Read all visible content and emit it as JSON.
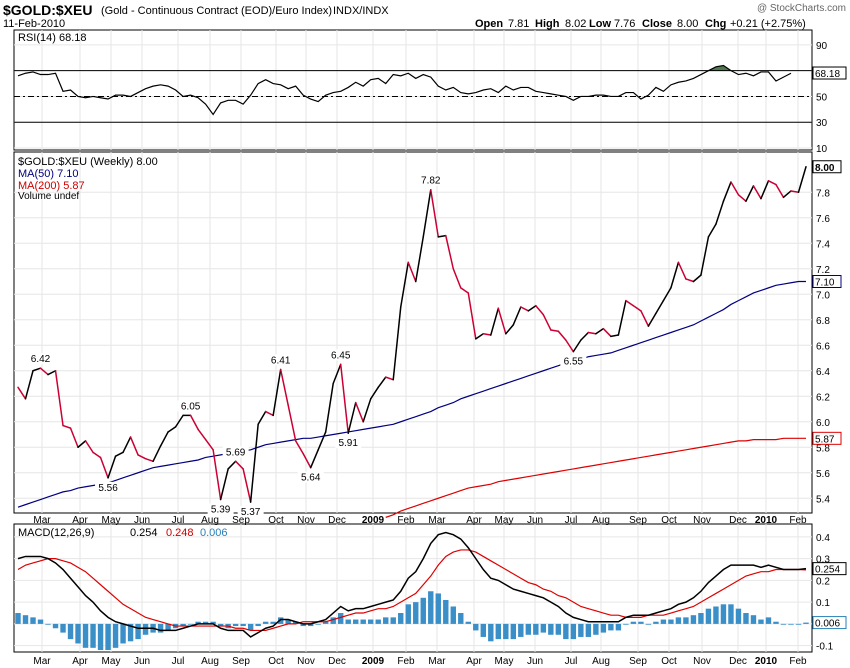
{
  "header": {
    "symbol": "$GOLD:$XEU",
    "description": "(Gold - Continuous Contract (EOD)/Euro Index)",
    "exchange": "INDX/INDX",
    "date": "11-Feb-2010",
    "open_label": "Open",
    "open": "7.81",
    "high_label": "High",
    "high": "8.02",
    "low_label": "Low",
    "low": "7.76",
    "close_label": "Close",
    "close": "8.00",
    "chg_label": "Chg",
    "chg": "+0.21 (+2.75%)",
    "watermark": "@ StockCharts.com"
  },
  "colors": {
    "up": "#000000",
    "down": "#cc0033",
    "ma50": "#000080",
    "ma200": "#dd0000",
    "hist": "#3a8fc8",
    "rsi_fill": "#4e7a4e",
    "grid": "#e6e6e6",
    "axis": "#000000"
  },
  "chart_data": [
    {
      "type": "line",
      "panel": "rsi",
      "legend": "RSI(14) 68.18",
      "last_value": "68.18",
      "ylim": [
        10,
        100
      ],
      "y_ticks": [
        "90",
        "70",
        "50",
        "30",
        "10"
      ],
      "reference_lines": [
        70,
        50,
        30
      ],
      "values": [
        66,
        68,
        69,
        67,
        67,
        68,
        54,
        55,
        50,
        49,
        50,
        49,
        48,
        51,
        51,
        50,
        53,
        56,
        58,
        59,
        58,
        55,
        50,
        51,
        49,
        44,
        36,
        45,
        47,
        47,
        44,
        51,
        60,
        63,
        60,
        59,
        56,
        58,
        51,
        48,
        46,
        51,
        53,
        54,
        57,
        61,
        58,
        63,
        64,
        60,
        67,
        66,
        68,
        64,
        67,
        65,
        58,
        55,
        57,
        53,
        52,
        53,
        55,
        56,
        53,
        58,
        55,
        57,
        57,
        54,
        53,
        52,
        51,
        50,
        47,
        50,
        50,
        51,
        51,
        50,
        50,
        53,
        53,
        48,
        51,
        57,
        54,
        59,
        61,
        62,
        64,
        67,
        70,
        73,
        74,
        70,
        67,
        68,
        66,
        69,
        69,
        62,
        65,
        68
      ]
    },
    {
      "type": "line",
      "panel": "price",
      "legend": [
        "$GOLD:$XEU (Weekly) 8.00",
        "MA(50) 7.10",
        "MA(200) 5.87",
        "Volume undef"
      ],
      "ylim": [
        5.3,
        8.1
      ],
      "y_ticks": [
        "8.00",
        "7.8",
        "7.6",
        "7.4",
        "7.2",
        "7.10",
        "7.0",
        "6.8",
        "6.6",
        "6.4",
        "6.2",
        "6.0",
        "5.87",
        "5.8",
        "5.6",
        "5.4"
      ],
      "x_ticks": [
        "Mar",
        "Apr",
        "May",
        "Jun",
        "Jul",
        "Aug",
        "Sep",
        "Oct",
        "Nov",
        "Dec",
        "2009",
        "Feb",
        "Mar",
        "Apr",
        "May",
        "Jun",
        "Jul",
        "Aug",
        "Sep",
        "Oct",
        "Nov",
        "Dec",
        "2010",
        "Feb"
      ],
      "series": [
        {
          "name": "$GOLD:$XEU",
          "values": [
            6.27,
            6.18,
            6.4,
            6.42,
            6.37,
            6.4,
            5.97,
            5.95,
            5.8,
            5.85,
            5.76,
            5.72,
            5.56,
            5.73,
            5.76,
            5.88,
            5.74,
            5.71,
            5.69,
            5.81,
            5.92,
            5.96,
            6.05,
            6.05,
            5.94,
            5.86,
            5.78,
            5.39,
            5.63,
            5.69,
            5.63,
            5.37,
            5.98,
            6.08,
            6.05,
            6.41,
            6.13,
            5.85,
            5.75,
            5.64,
            5.78,
            5.92,
            6.3,
            6.45,
            5.91,
            6.15,
            6.0,
            6.18,
            6.27,
            6.35,
            6.33,
            6.9,
            7.25,
            7.1,
            7.45,
            7.82,
            7.45,
            7.46,
            7.2,
            7.05,
            7.01,
            6.65,
            6.69,
            6.68,
            6.89,
            6.69,
            6.76,
            6.9,
            6.87,
            6.91,
            6.84,
            6.72,
            6.71,
            6.64,
            6.55,
            6.64,
            6.7,
            6.69,
            6.73,
            6.67,
            6.68,
            6.95,
            6.91,
            6.87,
            6.75,
            6.85,
            6.95,
            7.05,
            7.25,
            7.12,
            7.1,
            7.15,
            7.45,
            7.55,
            7.73,
            7.88,
            7.78,
            7.73,
            7.85,
            7.75,
            7.89,
            7.86,
            7.76,
            7.81,
            7.8,
            8.0
          ]
        },
        {
          "name": "MA(50)",
          "start_index": 0,
          "values": [
            5.33,
            5.35,
            5.37,
            5.39,
            5.41,
            5.43,
            5.45,
            5.46,
            5.48,
            5.49,
            5.5,
            5.51,
            5.52,
            5.54,
            5.56,
            5.58,
            5.6,
            5.62,
            5.64,
            5.65,
            5.66,
            5.67,
            5.68,
            5.69,
            5.7,
            5.72,
            5.73,
            5.74,
            5.75,
            5.76,
            5.77,
            5.78,
            5.8,
            5.82,
            5.83,
            5.84,
            5.85,
            5.86,
            5.87,
            5.87,
            5.88,
            5.89,
            5.9,
            5.91,
            5.92,
            5.93,
            5.94,
            5.95,
            5.96,
            5.97,
            5.98,
            6.0,
            6.02,
            6.04,
            6.06,
            6.08,
            6.11,
            6.13,
            6.15,
            6.18,
            6.2,
            6.22,
            6.24,
            6.26,
            6.28,
            6.3,
            6.32,
            6.34,
            6.36,
            6.38,
            6.4,
            6.42,
            6.44,
            6.46,
            6.48,
            6.49,
            6.51,
            6.52,
            6.53,
            6.54,
            6.56,
            6.58,
            6.6,
            6.62,
            6.64,
            6.66,
            6.68,
            6.7,
            6.72,
            6.74,
            6.76,
            6.79,
            6.82,
            6.85,
            6.88,
            6.92,
            6.95,
            6.98,
            7.01,
            7.03,
            7.05,
            7.07,
            7.08,
            7.09,
            7.1,
            7.1
          ]
        },
        {
          "name": "MA(200)",
          "start_index": 49,
          "values": [
            5.25,
            5.27,
            5.3,
            5.32,
            5.34,
            5.36,
            5.38,
            5.4,
            5.42,
            5.44,
            5.46,
            5.48,
            5.49,
            5.5,
            5.51,
            5.53,
            5.54,
            5.55,
            5.56,
            5.57,
            5.58,
            5.59,
            5.6,
            5.61,
            5.62,
            5.63,
            5.64,
            5.65,
            5.66,
            5.67,
            5.68,
            5.69,
            5.7,
            5.71,
            5.72,
            5.73,
            5.74,
            5.75,
            5.76,
            5.77,
            5.78,
            5.79,
            5.8,
            5.81,
            5.82,
            5.83,
            5.84,
            5.85,
            5.85,
            5.86,
            5.86,
            5.86,
            5.86,
            5.87,
            5.87,
            5.87,
            5.87
          ]
        }
      ],
      "annotations": [
        {
          "label": "6.42",
          "index": 3
        },
        {
          "label": "5.56",
          "index": 12
        },
        {
          "label": "6.05",
          "index": 23
        },
        {
          "label": "5.39",
          "index": 27
        },
        {
          "label": "5.69",
          "index": 29
        },
        {
          "label": "5.37",
          "index": 31
        },
        {
          "label": "6.41",
          "index": 35
        },
        {
          "label": "5.64",
          "index": 39
        },
        {
          "label": "6.45",
          "index": 43
        },
        {
          "label": "5.91",
          "index": 44
        },
        {
          "label": "7.82",
          "index": 55
        },
        {
          "label": "6.55",
          "index": 74
        }
      ],
      "last_labels": [
        "8.00",
        "7.10",
        "5.87"
      ]
    },
    {
      "type": "bar",
      "panel": "macd",
      "legend": [
        "MACD(12,26,9)",
        "0.254",
        "0.248",
        "0.006"
      ],
      "ylim": [
        -0.12,
        0.45
      ],
      "y_ticks": [
        "0.4",
        "0.3",
        "0.254",
        "0.2",
        "0.1",
        "0.006",
        "-0.1"
      ],
      "x_ticks": [
        "Mar",
        "Apr",
        "May",
        "Jun",
        "Jul",
        "Aug",
        "Sep",
        "Oct",
        "Nov",
        "Dec",
        "2009",
        "Feb",
        "Mar",
        "Apr",
        "May",
        "Jun",
        "Jul",
        "Aug",
        "Sep",
        "Oct",
        "Nov",
        "Dec",
        "2010",
        "Feb"
      ],
      "series": [
        {
          "name": "MACD",
          "values": [
            0.3,
            0.31,
            0.31,
            0.31,
            0.3,
            0.28,
            0.25,
            0.21,
            0.17,
            0.13,
            0.1,
            0.06,
            0.03,
            0.01,
            0.0,
            -0.01,
            -0.02,
            -0.02,
            -0.02,
            -0.03,
            -0.03,
            -0.03,
            -0.02,
            -0.01,
            0.0,
            0.0,
            0.0,
            -0.02,
            -0.03,
            -0.03,
            -0.03,
            -0.06,
            -0.04,
            -0.02,
            -0.01,
            0.02,
            0.02,
            0.01,
            0.0,
            0.0,
            0.01,
            0.02,
            0.05,
            0.08,
            0.06,
            0.07,
            0.07,
            0.08,
            0.09,
            0.1,
            0.11,
            0.15,
            0.21,
            0.24,
            0.3,
            0.37,
            0.41,
            0.42,
            0.41,
            0.39,
            0.35,
            0.3,
            0.25,
            0.21,
            0.2,
            0.18,
            0.16,
            0.15,
            0.14,
            0.13,
            0.12,
            0.1,
            0.08,
            0.05,
            0.03,
            0.02,
            0.01,
            0.01,
            0.01,
            0.01,
            0.01,
            0.03,
            0.04,
            0.04,
            0.04,
            0.05,
            0.06,
            0.07,
            0.09,
            0.1,
            0.12,
            0.15,
            0.19,
            0.22,
            0.25,
            0.27,
            0.27,
            0.27,
            0.27,
            0.26,
            0.27,
            0.26,
            0.25,
            0.25,
            0.25,
            0.254
          ]
        },
        {
          "name": "Signal",
          "values": [
            0.25,
            0.27,
            0.28,
            0.29,
            0.3,
            0.3,
            0.29,
            0.28,
            0.26,
            0.24,
            0.21,
            0.18,
            0.15,
            0.12,
            0.09,
            0.07,
            0.05,
            0.03,
            0.02,
            0.01,
            0.0,
            -0.01,
            -0.01,
            -0.01,
            -0.01,
            -0.01,
            -0.01,
            -0.01,
            -0.01,
            -0.02,
            -0.02,
            -0.03,
            -0.03,
            -0.03,
            -0.02,
            -0.01,
            0.0,
            0.0,
            0.01,
            0.01,
            0.01,
            0.01,
            0.02,
            0.03,
            0.04,
            0.05,
            0.05,
            0.06,
            0.07,
            0.07,
            0.08,
            0.1,
            0.12,
            0.14,
            0.18,
            0.22,
            0.27,
            0.31,
            0.33,
            0.34,
            0.34,
            0.33,
            0.31,
            0.29,
            0.27,
            0.25,
            0.23,
            0.21,
            0.19,
            0.18,
            0.16,
            0.15,
            0.13,
            0.12,
            0.1,
            0.08,
            0.07,
            0.06,
            0.05,
            0.04,
            0.04,
            0.03,
            0.03,
            0.03,
            0.04,
            0.04,
            0.04,
            0.05,
            0.06,
            0.07,
            0.08,
            0.1,
            0.12,
            0.14,
            0.16,
            0.18,
            0.2,
            0.22,
            0.23,
            0.24,
            0.24,
            0.25,
            0.25,
            0.25,
            0.25,
            0.248
          ]
        },
        {
          "name": "Histogram",
          "values": [
            0.05,
            0.04,
            0.03,
            0.02,
            0.0,
            -0.02,
            -0.04,
            -0.07,
            -0.09,
            -0.11,
            -0.11,
            -0.12,
            -0.12,
            -0.11,
            -0.09,
            -0.08,
            -0.07,
            -0.05,
            -0.04,
            -0.04,
            -0.03,
            -0.02,
            -0.01,
            0.0,
            0.01,
            0.01,
            0.01,
            -0.01,
            -0.02,
            -0.01,
            -0.01,
            -0.03,
            -0.01,
            0.01,
            0.01,
            0.03,
            0.02,
            0.01,
            -0.01,
            -0.01,
            0.0,
            0.01,
            0.03,
            0.05,
            0.02,
            0.02,
            0.02,
            0.02,
            0.02,
            0.03,
            0.03,
            0.05,
            0.09,
            0.1,
            0.12,
            0.15,
            0.14,
            0.11,
            0.08,
            0.05,
            0.01,
            -0.03,
            -0.06,
            -0.08,
            -0.07,
            -0.07,
            -0.07,
            -0.06,
            -0.05,
            -0.05,
            -0.04,
            -0.05,
            -0.05,
            -0.07,
            -0.07,
            -0.06,
            -0.06,
            -0.05,
            -0.04,
            -0.03,
            -0.03,
            0.0,
            0.01,
            0.01,
            0.0,
            0.01,
            0.02,
            0.02,
            0.03,
            0.03,
            0.04,
            0.05,
            0.07,
            0.08,
            0.09,
            0.09,
            0.07,
            0.05,
            0.04,
            0.02,
            0.03,
            0.01,
            0.0,
            0.0,
            0.0,
            0.006
          ]
        }
      ]
    }
  ]
}
